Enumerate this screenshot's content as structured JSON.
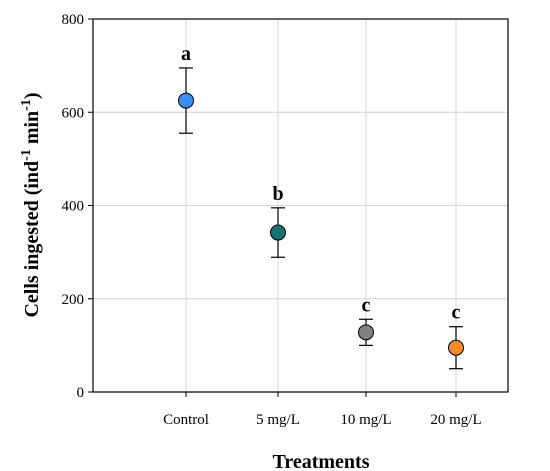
{
  "chart_data": {
    "type": "scatter",
    "xlabel": "Treatments",
    "ylabel_main": "Cells ingested (ind",
    "ylabel_sup1": "-1",
    "ylabel_mid": " min",
    "ylabel_sup2": "-1",
    "ylabel_close": ")",
    "ylim": [
      0,
      800
    ],
    "yticks": [
      "0",
      "200",
      "400",
      "600",
      "800"
    ],
    "grid": true,
    "legend": "none",
    "categories": [
      "Control",
      "5 mg/L",
      "10 mg/L",
      "20 mg/L"
    ],
    "values": [
      625,
      342,
      128,
      95
    ],
    "error": [
      70,
      53,
      28,
      45
    ],
    "significance": [
      "a",
      "b",
      "c",
      "c"
    ],
    "colors": [
      "#3d8df0",
      "#1a7373",
      "#808080",
      "#f28a2e"
    ]
  }
}
